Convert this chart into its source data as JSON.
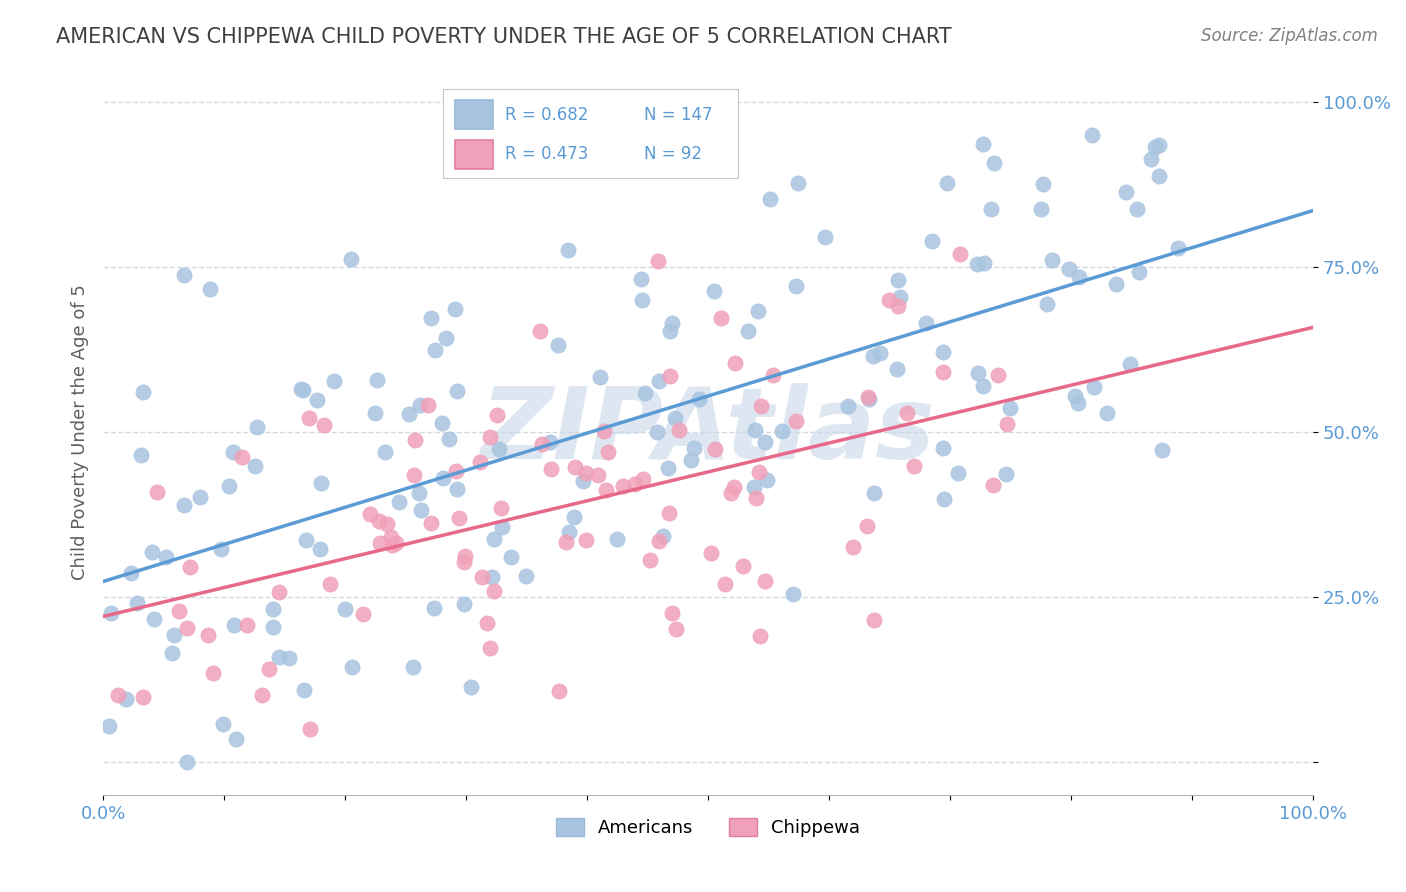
{
  "title": "AMERICAN VS CHIPPEWA CHILD POVERTY UNDER THE AGE OF 5 CORRELATION CHART",
  "source": "Source: ZipAtlas.com",
  "ylabel": "Child Poverty Under the Age of 5",
  "xlim": [
    0.0,
    1.0
  ],
  "ylim": [
    -0.05,
    1.05
  ],
  "yticks": [
    0.0,
    0.25,
    0.5,
    0.75,
    1.0
  ],
  "ytick_labels": [
    "",
    "25.0%",
    "50.0%",
    "75.0%",
    "100.0%"
  ],
  "legend_r_american": "R = 0.682",
  "legend_n_american": "N = 147",
  "legend_r_chippewa": "R = 0.473",
  "legend_n_chippewa": "N = 92",
  "american_color": "#a8c4e0",
  "chippewa_color": "#f0a0b8",
  "american_line_color": "#5b9bd5",
  "chippewa_line_color": "#e8688a",
  "title_color": "#404040",
  "axis_label_color": "#606060",
  "tick_label_color": "#5b9bd5",
  "legend_text_color": "#5b9bd5",
  "watermark": "ZIPAtlas",
  "watermark_color": "#c8d8e8",
  "american_seed": 42,
  "chippewa_seed": 123,
  "n_american": 147,
  "n_chippewa": 92,
  "r_american": 0.682,
  "r_chippewa": 0.473,
  "background_color": "#ffffff",
  "grid_color": "#d0d8e0",
  "grid_style": "--"
}
